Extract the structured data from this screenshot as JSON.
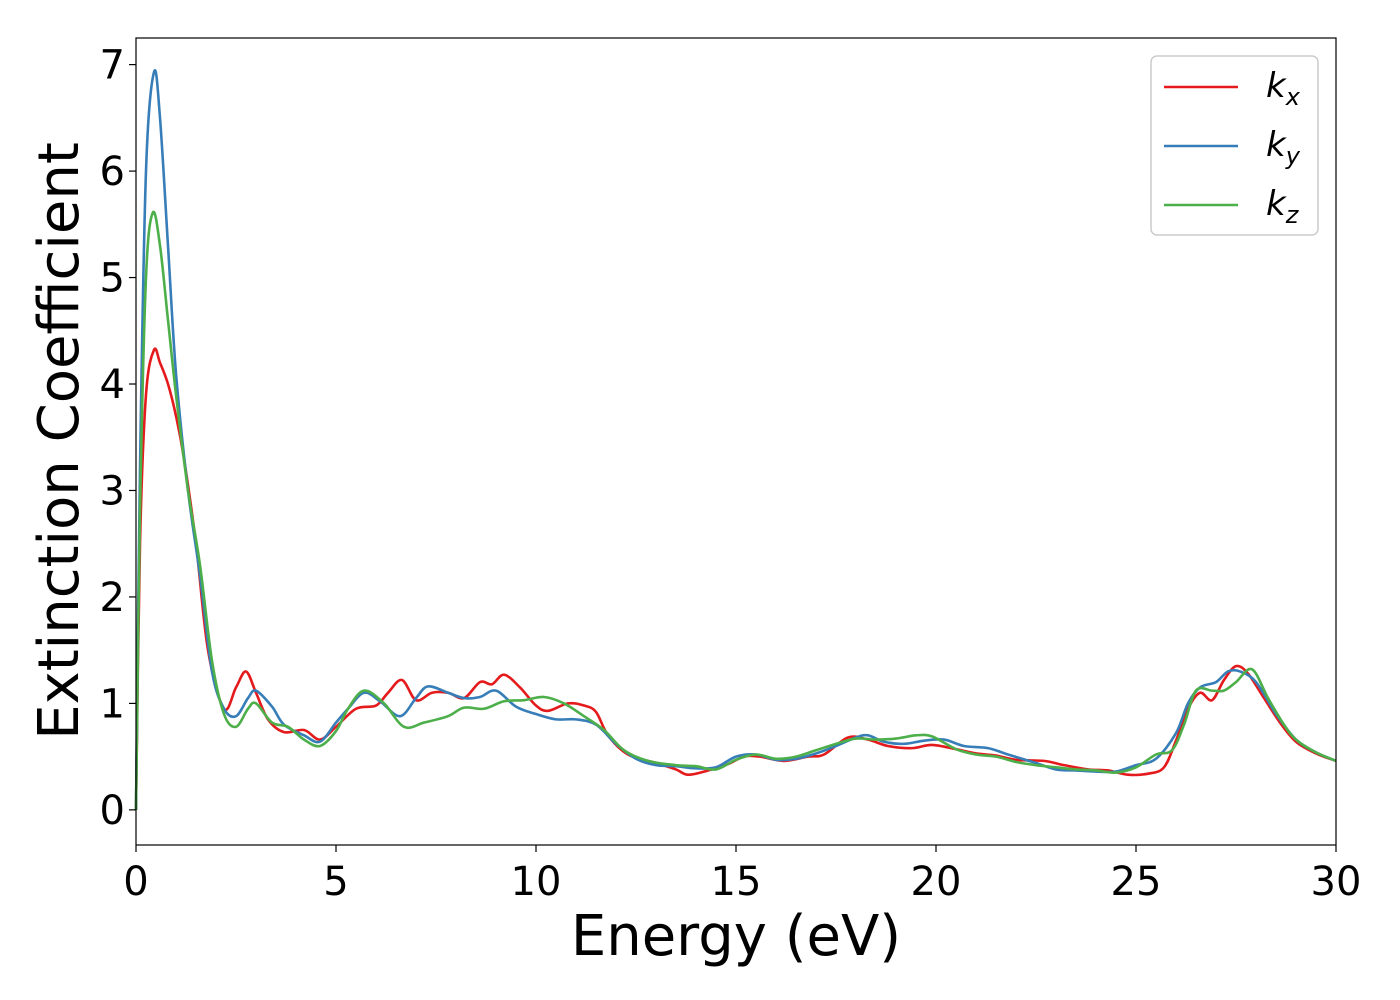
{
  "chart_data": {
    "type": "line",
    "xlabel": "Energy (eV)",
    "ylabel": "Extinction Coefficient",
    "xlim": [
      0,
      30
    ],
    "ylim": [
      -0.33,
      7.25
    ],
    "x_ticks": [
      "0",
      "5",
      "10",
      "15",
      "20",
      "25",
      "30"
    ],
    "y_ticks": [
      "0",
      "1",
      "2",
      "3",
      "4",
      "5",
      "6",
      "7"
    ],
    "x_tick_values": [
      0,
      5,
      10,
      15,
      20,
      25,
      30
    ],
    "y_tick_values": [
      0,
      1,
      2,
      3,
      4,
      5,
      6,
      7
    ],
    "grid": false,
    "legend_position": "top-right",
    "series": [
      {
        "name": "k",
        "subscript": "x",
        "color": "#e41a1c",
        "points": [
          [
            0,
            0
          ],
          [
            0.1,
            2.5
          ],
          [
            0.25,
            3.9
          ],
          [
            0.45,
            4.32
          ],
          [
            0.6,
            4.2
          ],
          [
            0.8,
            4.0
          ],
          [
            1.0,
            3.7
          ],
          [
            1.2,
            3.3
          ],
          [
            1.5,
            2.5
          ],
          [
            1.8,
            1.5
          ],
          [
            2.2,
            0.95
          ],
          [
            2.5,
            1.15
          ],
          [
            2.75,
            1.3
          ],
          [
            3.0,
            1.1
          ],
          [
            3.3,
            0.85
          ],
          [
            3.7,
            0.73
          ],
          [
            4.2,
            0.75
          ],
          [
            4.6,
            0.66
          ],
          [
            5.0,
            0.78
          ],
          [
            5.5,
            0.95
          ],
          [
            6.0,
            0.98
          ],
          [
            6.3,
            1.1
          ],
          [
            6.65,
            1.22
          ],
          [
            7.0,
            1.03
          ],
          [
            7.4,
            1.1
          ],
          [
            7.8,
            1.1
          ],
          [
            8.2,
            1.05
          ],
          [
            8.6,
            1.2
          ],
          [
            8.9,
            1.18
          ],
          [
            9.2,
            1.27
          ],
          [
            9.6,
            1.15
          ],
          [
            10.0,
            0.98
          ],
          [
            10.3,
            0.93
          ],
          [
            10.8,
            1.0
          ],
          [
            11.2,
            0.98
          ],
          [
            11.5,
            0.92
          ],
          [
            11.8,
            0.7
          ],
          [
            12.3,
            0.52
          ],
          [
            13.0,
            0.44
          ],
          [
            13.5,
            0.38
          ],
          [
            13.8,
            0.33
          ],
          [
            14.3,
            0.37
          ],
          [
            14.8,
            0.43
          ],
          [
            15.2,
            0.5
          ],
          [
            15.6,
            0.5
          ],
          [
            16.2,
            0.46
          ],
          [
            16.8,
            0.5
          ],
          [
            17.2,
            0.52
          ],
          [
            17.8,
            0.68
          ],
          [
            18.3,
            0.66
          ],
          [
            18.8,
            0.6
          ],
          [
            19.4,
            0.58
          ],
          [
            19.9,
            0.61
          ],
          [
            20.5,
            0.57
          ],
          [
            21.0,
            0.53
          ],
          [
            21.5,
            0.51
          ],
          [
            22.0,
            0.47
          ],
          [
            22.7,
            0.46
          ],
          [
            23.2,
            0.42
          ],
          [
            23.8,
            0.38
          ],
          [
            24.3,
            0.37
          ],
          [
            24.8,
            0.33
          ],
          [
            25.3,
            0.34
          ],
          [
            25.7,
            0.4
          ],
          [
            26.0,
            0.65
          ],
          [
            26.3,
            0.95
          ],
          [
            26.6,
            1.1
          ],
          [
            26.9,
            1.03
          ],
          [
            27.2,
            1.22
          ],
          [
            27.5,
            1.35
          ],
          [
            27.8,
            1.28
          ],
          [
            28.2,
            1.05
          ],
          [
            28.6,
            0.82
          ],
          [
            29.0,
            0.64
          ],
          [
            29.5,
            0.53
          ],
          [
            30.0,
            0.46
          ]
        ]
      },
      {
        "name": "k",
        "subscript": "y",
        "color": "#377eb8",
        "points": [
          [
            0,
            0
          ],
          [
            0.1,
            3.2
          ],
          [
            0.25,
            6.0
          ],
          [
            0.45,
            6.93
          ],
          [
            0.6,
            6.5
          ],
          [
            0.8,
            5.3
          ],
          [
            1.0,
            4.1
          ],
          [
            1.3,
            3.0
          ],
          [
            1.6,
            2.2
          ],
          [
            1.9,
            1.3
          ],
          [
            2.2,
            0.95
          ],
          [
            2.5,
            0.88
          ],
          [
            2.8,
            1.05
          ],
          [
            3.0,
            1.12
          ],
          [
            3.4,
            0.97
          ],
          [
            3.7,
            0.8
          ],
          [
            4.2,
            0.7
          ],
          [
            4.6,
            0.64
          ],
          [
            5.0,
            0.82
          ],
          [
            5.3,
            0.95
          ],
          [
            5.7,
            1.1
          ],
          [
            6.1,
            1.02
          ],
          [
            6.6,
            0.88
          ],
          [
            7.0,
            1.05
          ],
          [
            7.3,
            1.16
          ],
          [
            7.8,
            1.1
          ],
          [
            8.2,
            1.05
          ],
          [
            8.6,
            1.06
          ],
          [
            9.0,
            1.12
          ],
          [
            9.5,
            0.97
          ],
          [
            10.0,
            0.9
          ],
          [
            10.5,
            0.85
          ],
          [
            11.0,
            0.85
          ],
          [
            11.5,
            0.8
          ],
          [
            12.0,
            0.62
          ],
          [
            12.5,
            0.48
          ],
          [
            13.0,
            0.42
          ],
          [
            13.5,
            0.41
          ],
          [
            14.0,
            0.39
          ],
          [
            14.5,
            0.4
          ],
          [
            15.0,
            0.5
          ],
          [
            15.5,
            0.52
          ],
          [
            16.0,
            0.47
          ],
          [
            16.5,
            0.48
          ],
          [
            17.0,
            0.53
          ],
          [
            17.5,
            0.6
          ],
          [
            18.0,
            0.68
          ],
          [
            18.3,
            0.7
          ],
          [
            18.7,
            0.64
          ],
          [
            19.2,
            0.62
          ],
          [
            19.7,
            0.65
          ],
          [
            20.2,
            0.66
          ],
          [
            20.7,
            0.6
          ],
          [
            21.3,
            0.58
          ],
          [
            21.8,
            0.52
          ],
          [
            22.5,
            0.44
          ],
          [
            23.0,
            0.38
          ],
          [
            23.5,
            0.37
          ],
          [
            24.0,
            0.36
          ],
          [
            24.5,
            0.36
          ],
          [
            25.0,
            0.42
          ],
          [
            25.5,
            0.48
          ],
          [
            26.0,
            0.72
          ],
          [
            26.3,
            1.0
          ],
          [
            26.6,
            1.15
          ],
          [
            27.0,
            1.2
          ],
          [
            27.3,
            1.3
          ],
          [
            27.6,
            1.3
          ],
          [
            28.0,
            1.2
          ],
          [
            28.5,
            0.9
          ],
          [
            29.0,
            0.66
          ],
          [
            29.5,
            0.54
          ],
          [
            30.0,
            0.46
          ]
        ]
      },
      {
        "name": "k",
        "subscript": "z",
        "color": "#4daf4a",
        "points": [
          [
            0,
            0
          ],
          [
            0.1,
            2.8
          ],
          [
            0.25,
            5.0
          ],
          [
            0.42,
            5.61
          ],
          [
            0.6,
            5.3
          ],
          [
            0.8,
            4.6
          ],
          [
            1.0,
            3.9
          ],
          [
            1.3,
            3.0
          ],
          [
            1.6,
            2.3
          ],
          [
            1.9,
            1.4
          ],
          [
            2.2,
            0.9
          ],
          [
            2.5,
            0.78
          ],
          [
            2.8,
            0.95
          ],
          [
            3.0,
            1.0
          ],
          [
            3.4,
            0.82
          ],
          [
            3.8,
            0.78
          ],
          [
            4.2,
            0.66
          ],
          [
            4.6,
            0.6
          ],
          [
            5.0,
            0.74
          ],
          [
            5.3,
            0.95
          ],
          [
            5.7,
            1.12
          ],
          [
            6.2,
            1.0
          ],
          [
            6.7,
            0.78
          ],
          [
            7.2,
            0.82
          ],
          [
            7.8,
            0.88
          ],
          [
            8.2,
            0.96
          ],
          [
            8.7,
            0.95
          ],
          [
            9.2,
            1.02
          ],
          [
            9.7,
            1.03
          ],
          [
            10.2,
            1.06
          ],
          [
            10.7,
            1.0
          ],
          [
            11.2,
            0.88
          ],
          [
            11.7,
            0.75
          ],
          [
            12.2,
            0.56
          ],
          [
            12.8,
            0.46
          ],
          [
            13.5,
            0.42
          ],
          [
            14.0,
            0.41
          ],
          [
            14.5,
            0.38
          ],
          [
            15.0,
            0.47
          ],
          [
            15.5,
            0.52
          ],
          [
            16.0,
            0.48
          ],
          [
            16.5,
            0.5
          ],
          [
            17.0,
            0.56
          ],
          [
            17.5,
            0.62
          ],
          [
            18.0,
            0.67
          ],
          [
            18.5,
            0.66
          ],
          [
            19.0,
            0.67
          ],
          [
            19.5,
            0.7
          ],
          [
            19.9,
            0.69
          ],
          [
            20.5,
            0.57
          ],
          [
            21.0,
            0.52
          ],
          [
            21.5,
            0.5
          ],
          [
            22.0,
            0.45
          ],
          [
            22.5,
            0.42
          ],
          [
            23.0,
            0.4
          ],
          [
            23.5,
            0.38
          ],
          [
            24.0,
            0.37
          ],
          [
            24.5,
            0.35
          ],
          [
            25.0,
            0.4
          ],
          [
            25.5,
            0.52
          ],
          [
            25.9,
            0.56
          ],
          [
            26.2,
            0.8
          ],
          [
            26.5,
            1.12
          ],
          [
            26.9,
            1.12
          ],
          [
            27.2,
            1.12
          ],
          [
            27.5,
            1.2
          ],
          [
            27.9,
            1.32
          ],
          [
            28.3,
            1.05
          ],
          [
            28.7,
            0.8
          ],
          [
            29.0,
            0.66
          ],
          [
            29.5,
            0.54
          ],
          [
            30.0,
            0.46
          ]
        ]
      }
    ]
  }
}
